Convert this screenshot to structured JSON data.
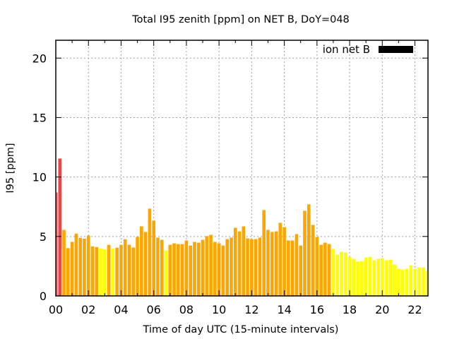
{
  "chart_data": {
    "type": "bar",
    "title": "Total I95 zenith [ppm] on NET B, DoY=048",
    "xlabel": "Time of day UTC (15-minute intervals)",
    "ylabel": "I95 [ppm]",
    "xlim": [
      0,
      22.8
    ],
    "ylim": [
      0,
      21.5
    ],
    "grid": true,
    "x_step_hours": 0.25,
    "xticks": [
      0,
      2,
      4,
      6,
      8,
      10,
      12,
      14,
      16,
      18,
      20,
      22
    ],
    "xtick_labels": [
      "00",
      "02",
      "04",
      "06",
      "08",
      "10",
      "12",
      "14",
      "16",
      "18",
      "20",
      "22"
    ],
    "x_minor_ticks": [
      1,
      3,
      5,
      7,
      9,
      11,
      13,
      15,
      17,
      19,
      21
    ],
    "yticks": [
      0,
      5,
      10,
      15,
      20
    ],
    "ytick_labels": [
      "0",
      "5",
      "10",
      "15",
      "20"
    ],
    "legend": {
      "position": "top-right",
      "entries": [
        {
          "label": "ion net B",
          "color": "#000000"
        }
      ]
    },
    "color_thresholds": [
      {
        "below": 4,
        "color": "#ffff00"
      },
      {
        "below": 8,
        "color": "#ffa500"
      },
      {
        "below": 1000,
        "color": "#ee4444"
      }
    ],
    "series": [
      {
        "name": "ion net B",
        "values": [
          8.7,
          11.55,
          5.55,
          4.02,
          4.54,
          5.24,
          4.88,
          4.82,
          5.08,
          4.17,
          4.11,
          3.97,
          3.93,
          4.29,
          3.98,
          4.05,
          4.3,
          4.76,
          4.3,
          4.07,
          4.96,
          5.85,
          5.38,
          7.34,
          6.33,
          4.9,
          4.72,
          3.83,
          4.3,
          4.42,
          4.36,
          4.36,
          4.66,
          4.24,
          4.54,
          4.48,
          4.72,
          5.02,
          5.14,
          4.54,
          4.42,
          4.24,
          4.78,
          4.9,
          5.73,
          5.43,
          5.85,
          4.84,
          4.78,
          4.78,
          4.9,
          7.22,
          5.55,
          5.38,
          5.43,
          6.15,
          5.79,
          4.66,
          4.66,
          5.2,
          4.24,
          7.16,
          7.7,
          5.97,
          4.96,
          4.3,
          4.48,
          4.36,
          3.95,
          3.47,
          3.71,
          3.65,
          3.29,
          3.11,
          2.88,
          2.93,
          3.23,
          3.29,
          2.99,
          3.11,
          3.17,
          2.99,
          3.05,
          2.64,
          2.28,
          2.22,
          2.28,
          2.58,
          2.28,
          2.4,
          2.4,
          2.1
        ]
      }
    ]
  }
}
